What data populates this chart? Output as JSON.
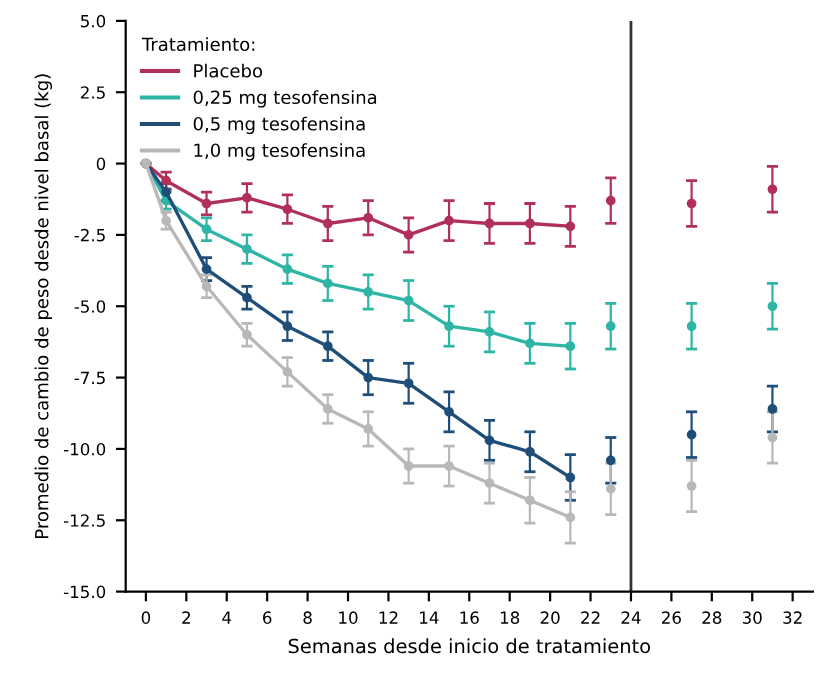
{
  "chart_data": {
    "type": "line",
    "xlabel": "Semanas desde inicio de tratamiento",
    "ylabel": "Promedio de cambio de peso desde nivel basal (kg)",
    "legend_title": "Tratamiento:",
    "legend": "top left",
    "grid": false,
    "marker": "circle",
    "line_style": "solid",
    "xlim": [
      -1,
      33
    ],
    "xticks": [
      0,
      2,
      4,
      6,
      8,
      10,
      12,
      14,
      16,
      18,
      20,
      22,
      24,
      26,
      28,
      30,
      32
    ],
    "ylim": [
      -15,
      5
    ],
    "yticks": [
      {
        "value": -15,
        "label": "-15.0"
      },
      -12.5,
      {
        "value": -10,
        "label": "-10.0"
      },
      -7.5,
      {
        "value": -5,
        "label": "-5.0"
      },
      -2.5,
      0,
      2.5,
      {
        "value": 5,
        "label": "5.0"
      }
    ],
    "ref_lines": [
      {
        "axis": "x",
        "value": 24,
        "color": "#333333",
        "line_style": "solid"
      }
    ],
    "series": [
      {
        "name": "Placebo",
        "color": "#b0305a",
        "x": [
          0,
          1,
          3,
          5,
          7,
          9,
          11,
          13,
          15,
          17,
          19,
          21
        ],
        "values": [
          0,
          -0.6,
          -1.4,
          -1.2,
          -1.6,
          -2.1,
          -1.9,
          -2.5,
          -2.0,
          -2.1,
          -2.1,
          -2.2
        ],
        "errors": [
          null,
          0.3,
          0.4,
          0.5,
          0.5,
          0.6,
          0.6,
          0.6,
          0.7,
          0.7,
          0.7,
          0.7
        ]
      },
      {
        "name": "0,25 mg tesofensina",
        "color": "#2fb5a5",
        "x": [
          0,
          1,
          3,
          5,
          7,
          9,
          11,
          13,
          15,
          17,
          19,
          21
        ],
        "values": [
          0,
          -1.3,
          -2.3,
          -3.0,
          -3.7,
          -4.2,
          -4.5,
          -4.8,
          -5.7,
          -5.9,
          -6.3,
          -6.4
        ],
        "errors": [
          null,
          0.3,
          0.4,
          0.5,
          0.5,
          0.6,
          0.6,
          0.7,
          0.7,
          0.7,
          0.7,
          0.8
        ]
      },
      {
        "name": "0,5 mg tesofensina",
        "color": "#1f4e79",
        "x": [
          0,
          1,
          3,
          5,
          7,
          9,
          11,
          13,
          15,
          17,
          19,
          21
        ],
        "values": [
          0,
          -1.0,
          -3.7,
          -4.7,
          -5.7,
          -6.4,
          -7.5,
          -7.7,
          -8.7,
          -9.7,
          -10.1,
          -11.0
        ],
        "errors": [
          null,
          0.3,
          0.4,
          0.4,
          0.5,
          0.5,
          0.6,
          0.7,
          0.7,
          0.7,
          0.7,
          0.8
        ]
      },
      {
        "name": "1,0 mg tesofensina",
        "color": "#b8b8b8",
        "x": [
          0,
          1,
          3,
          5,
          7,
          9,
          11,
          13,
          15,
          17,
          19,
          21
        ],
        "values": [
          0,
          -2.0,
          -4.3,
          -6.0,
          -7.3,
          -8.6,
          -9.3,
          -10.6,
          -10.6,
          -11.2,
          -11.8,
          -12.4
        ],
        "errors": [
          null,
          0.3,
          0.4,
          0.4,
          0.5,
          0.5,
          0.6,
          0.6,
          0.7,
          0.7,
          0.8,
          0.9
        ]
      },
      {
        "type": "scatter",
        "color": "#b0305a",
        "x": [
          23,
          27,
          31
        ],
        "values": [
          -1.3,
          -1.4,
          -0.9
        ],
        "errors": [
          0.8,
          0.8,
          0.8
        ]
      },
      {
        "type": "scatter",
        "color": "#2fb5a5",
        "x": [
          23,
          27,
          31
        ],
        "values": [
          -5.7,
          -5.7,
          -5.0
        ],
        "errors": [
          0.8,
          0.8,
          0.8
        ]
      },
      {
        "type": "scatter",
        "color": "#1f4e79",
        "x": [
          23,
          27,
          31
        ],
        "values": [
          -10.4,
          -9.5,
          -8.6
        ],
        "errors": [
          0.8,
          0.8,
          0.8
        ]
      },
      {
        "type": "scatter",
        "color": "#b8b8b8",
        "x": [
          23,
          27,
          31
        ],
        "values": [
          -11.4,
          -11.3,
          -9.6
        ],
        "errors": [
          0.9,
          0.9,
          0.9
        ]
      }
    ]
  }
}
